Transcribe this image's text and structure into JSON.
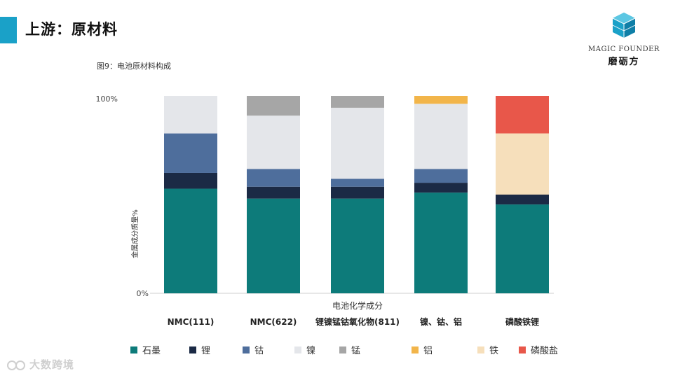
{
  "header": {
    "title": "上游：原材料",
    "accent_color": "#1aa1c8"
  },
  "logo": {
    "name_en": "MAGIC FOUNDER",
    "name_cn": "磨砺方",
    "icon": "cube-logo-icon"
  },
  "figure": {
    "caption": "图9：电池原材料构成"
  },
  "chart_data": {
    "type": "bar",
    "stacked": true,
    "normalized": true,
    "categories": [
      "NMC(111)",
      "NMC(622)",
      "锂镍锰钴氧化物(811)",
      "镍、钴、铝",
      "磷酸铁锂"
    ],
    "xlabel": "电池化学成分",
    "ylabel": "金属成分质量%",
    "y_tick_labels": [
      "0%",
      "100%"
    ],
    "ylim": [
      0,
      100
    ],
    "grid": false,
    "legend_position": "bottom",
    "series": [
      {
        "name": "石墨",
        "color": "#0d7b7a",
        "values": [
          53,
          48,
          48,
          51,
          45
        ]
      },
      {
        "name": "锂",
        "color": "#1b2a45",
        "values": [
          8,
          6,
          6,
          5,
          5
        ]
      },
      {
        "name": "钴",
        "color": "#4e6e9c",
        "values": [
          20,
          9,
          4,
          7,
          0
        ]
      },
      {
        "name": "镍",
        "color": "#e4e6ea",
        "values": [
          19,
          27,
          36,
          33,
          0
        ]
      },
      {
        "name": "锰",
        "color": "#a6a6a6",
        "values": [
          0,
          10,
          6,
          0,
          0
        ]
      },
      {
        "name": "铝",
        "color": "#f2b54a",
        "values": [
          0,
          0,
          0,
          4,
          0
        ]
      },
      {
        "name": "铁",
        "color": "#f6dfbb",
        "values": [
          0,
          0,
          0,
          0,
          31
        ]
      },
      {
        "name": "磷酸盐",
        "color": "#e8574a",
        "values": [
          0,
          0,
          0,
          0,
          19
        ]
      }
    ]
  },
  "watermark": {
    "text": "大数跨境"
  }
}
